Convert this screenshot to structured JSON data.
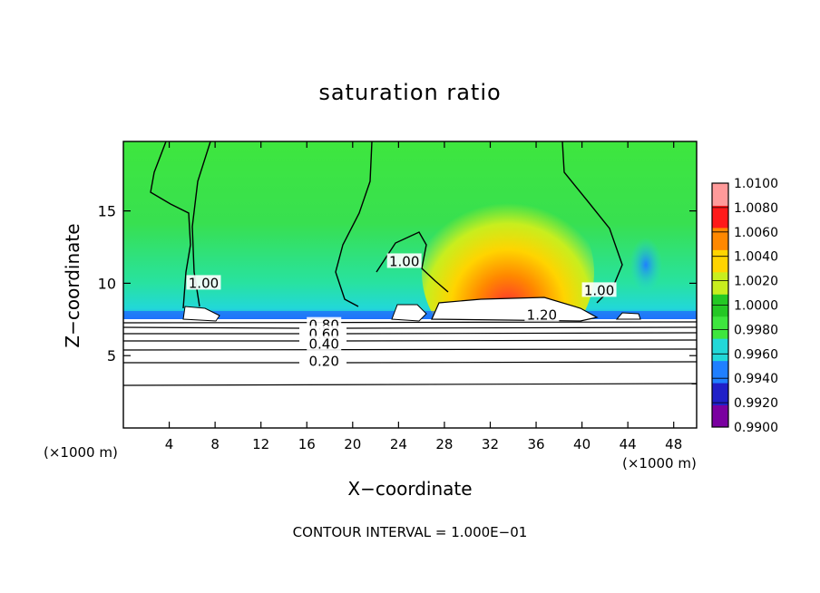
{
  "chart_data": {
    "type": "heatmap",
    "title": "saturation ratio",
    "xlabel": "X−coordinate",
    "ylabel": "Z−coordinate",
    "x_unit_label": "(×1000 m)",
    "z_unit_label": "(×1000 m)",
    "xlim": [
      0,
      50
    ],
    "ylim": [
      0,
      19.8
    ],
    "x_ticks": [
      4,
      8,
      12,
      16,
      20,
      24,
      28,
      32,
      36,
      40,
      44,
      48
    ],
    "y_ticks": [
      5,
      10,
      15
    ],
    "colorbar": {
      "range": [
        0.99,
        1.01
      ],
      "labels": [
        "1.0100",
        "1.0080",
        "1.0060",
        "1.0040",
        "1.0020",
        "1.0000",
        "0.9980",
        "0.9960",
        "0.9940",
        "0.9920",
        "0.9900"
      ]
    },
    "contour_labels": [
      {
        "text": "1.00",
        "x": 7,
        "z": 10
      },
      {
        "text": "1.00",
        "x": 24.5,
        "z": 11.5
      },
      {
        "text": "1.00",
        "x": 41.5,
        "z": 9.5
      },
      {
        "text": "1.20",
        "x": 36.5,
        "z": 7.8
      },
      {
        "text": "0.80",
        "x": 17.5,
        "z": 7.1
      },
      {
        "text": "0.60",
        "x": 17.5,
        "z": 6.5
      },
      {
        "text": "0.40",
        "x": 17.5,
        "z": 5.8
      },
      {
        "text": "0.20",
        "x": 17.5,
        "z": 4.6
      }
    ],
    "footnote": "CONTOUR INTERVAL = 1.000E−01"
  },
  "colors": {
    "scale": [
      "#7a00a0",
      "#2020c8",
      "#1f7fff",
      "#22d8d8",
      "#3ee63e",
      "#24c824",
      "#c8ee1e",
      "#ffd400",
      "#ff8800",
      "#ff1a1a",
      "#ff9a9a"
    ]
  }
}
